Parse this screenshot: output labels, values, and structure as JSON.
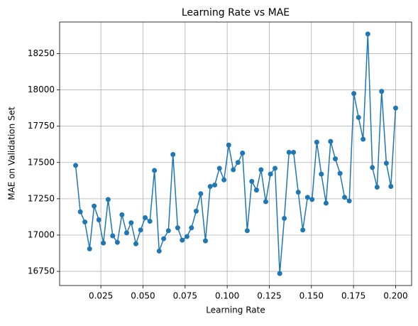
{
  "chart_data": {
    "type": "line",
    "title": "Learning Rate vs MAE",
    "x_label": "Learning Rate",
    "y_label": "MAE on Validation Set",
    "x": [
      0.01,
      0.0128,
      0.0155,
      0.0183,
      0.021,
      0.0238,
      0.0265,
      0.0293,
      0.032,
      0.0348,
      0.0375,
      0.0403,
      0.043,
      0.0458,
      0.0486,
      0.0513,
      0.0541,
      0.0568,
      0.0596,
      0.0623,
      0.0651,
      0.0678,
      0.0706,
      0.0733,
      0.0761,
      0.0788,
      0.0816,
      0.0843,
      0.0871,
      0.0899,
      0.0926,
      0.0954,
      0.0981,
      0.1009,
      0.1036,
      0.1064,
      0.1091,
      0.1119,
      0.1146,
      0.1174,
      0.1201,
      0.1229,
      0.1257,
      0.1284,
      0.1312,
      0.1339,
      0.1367,
      0.1394,
      0.1422,
      0.1449,
      0.1477,
      0.1504,
      0.1532,
      0.1559,
      0.1587,
      0.1614,
      0.1642,
      0.167,
      0.1697,
      0.1725,
      0.1752,
      0.178,
      0.1807,
      0.1835,
      0.1862,
      0.189,
      0.1917,
      0.1945,
      0.1972,
      0.2
    ],
    "series": [
      {
        "color": "#1f77b4",
        "values": [
          17480,
          17160,
          17090,
          16905,
          17200,
          17105,
          16945,
          17245,
          16995,
          16950,
          17140,
          17015,
          17085,
          16940,
          17035,
          17120,
          17095,
          17445,
          16890,
          16975,
          17030,
          17555,
          17050,
          16965,
          16990,
          17050,
          17165,
          17285,
          16960,
          17335,
          17345,
          17460,
          17380,
          17620,
          17450,
          17500,
          17565,
          17030,
          17370,
          17310,
          17450,
          17230,
          17420,
          17460,
          16735,
          17115,
          17570,
          17570,
          17295,
          17035,
          17260,
          17245,
          17640,
          17420,
          17220,
          17645,
          17525,
          17425,
          17260,
          17235,
          17975,
          17810,
          17660,
          18385,
          17465,
          17330,
          17990,
          17495,
          17335,
          17875
        ]
      }
    ],
    "xlim": [
      0.0005,
      0.2095
    ],
    "ylim": [
      16652.5,
      18467.5
    ],
    "xticks": [
      0.025,
      {
        "value": 0.05,
        "label": "0.050"
      },
      0.075,
      {
        "value": 0.1,
        "label": "0.100"
      },
      0.125,
      {
        "value": 0.15,
        "label": "0.150"
      },
      0.175,
      {
        "value": 0.2,
        "label": "0.200"
      }
    ],
    "yticks": [
      16750,
      17000,
      17250,
      17500,
      17750,
      18000,
      18250
    ],
    "grid": true
  }
}
